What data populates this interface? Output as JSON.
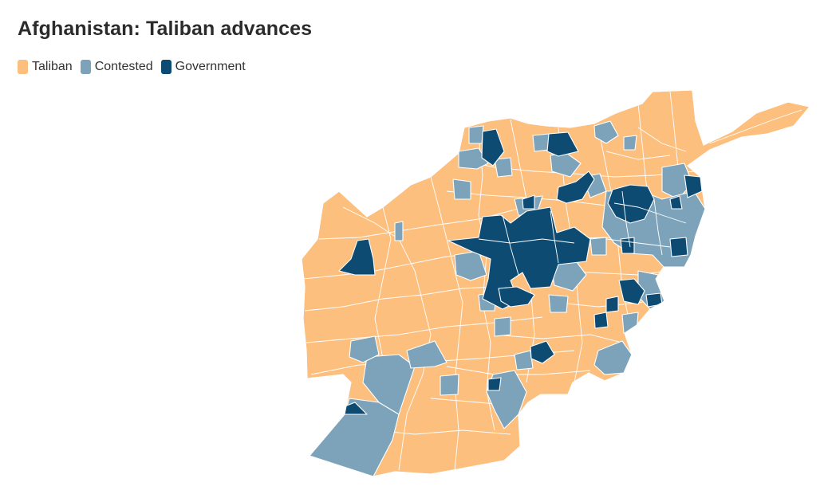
{
  "title": "Afghanistan: Taliban advances",
  "legend": [
    {
      "key": "taliban",
      "label": "Taliban",
      "color": "#fdbf7e"
    },
    {
      "key": "contested",
      "label": "Contested",
      "color": "#7ca3b9"
    },
    {
      "key": "government",
      "label": "Government",
      "color": "#0d4b73"
    }
  ],
  "map": {
    "subject": "Afghanistan district control",
    "control_classes": [
      "taliban",
      "contested",
      "government"
    ]
  }
}
